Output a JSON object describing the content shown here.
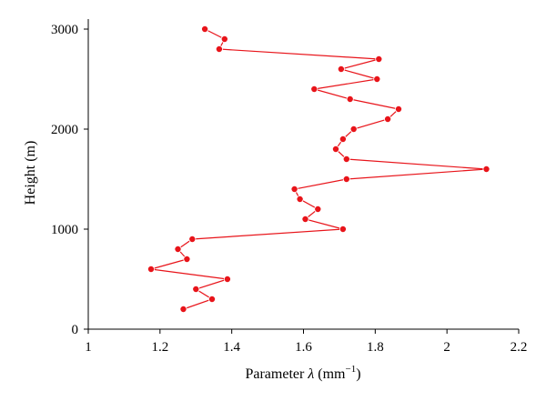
{
  "chart_data": {
    "type": "line",
    "xlabel_prefix": "Parameter ",
    "xlabel_symbol": "λ",
    "xlabel_unit": " (mm",
    "xlabel_exp": "−1",
    "xlabel_close": ")",
    "ylabel": "Height (m)",
    "xlim": [
      1.0,
      2.2
    ],
    "ylim": [
      0,
      3100
    ],
    "xticks": [
      1,
      1.2,
      1.4,
      1.6,
      1.8,
      2,
      2.2
    ],
    "xtick_labels": [
      "1",
      "1.2",
      "1.4",
      "1.6",
      "1.8",
      "2",
      "2.2"
    ],
    "yticks": [
      0,
      1000,
      2000,
      3000
    ],
    "ytick_labels": [
      "0",
      "1000",
      "2000",
      "3000"
    ],
    "grid": false,
    "legend": "none",
    "color": "#e8141a",
    "series": [
      {
        "points": [
          {
            "x": 1.265,
            "y": 200
          },
          {
            "x": 1.345,
            "y": 300
          },
          {
            "x": 1.3,
            "y": 400
          },
          {
            "x": 1.388,
            "y": 500
          },
          {
            "x": 1.175,
            "y": 600
          },
          {
            "x": 1.275,
            "y": 700
          },
          {
            "x": 1.25,
            "y": 800
          },
          {
            "x": 1.29,
            "y": 900
          },
          {
            "x": 1.71,
            "y": 1000
          },
          {
            "x": 1.605,
            "y": 1100
          },
          {
            "x": 1.64,
            "y": 1200
          },
          {
            "x": 1.59,
            "y": 1300
          },
          {
            "x": 1.575,
            "y": 1400
          },
          {
            "x": 1.72,
            "y": 1500
          },
          {
            "x": 2.11,
            "y": 1600
          },
          {
            "x": 1.72,
            "y": 1700
          },
          {
            "x": 1.69,
            "y": 1800
          },
          {
            "x": 1.71,
            "y": 1900
          },
          {
            "x": 1.74,
            "y": 2000
          },
          {
            "x": 1.835,
            "y": 2100
          },
          {
            "x": 1.865,
            "y": 2200
          },
          {
            "x": 1.73,
            "y": 2300
          },
          {
            "x": 1.63,
            "y": 2400
          },
          {
            "x": 1.805,
            "y": 2500
          },
          {
            "x": 1.705,
            "y": 2600
          },
          {
            "x": 1.81,
            "y": 2700
          },
          {
            "x": 1.365,
            "y": 2800
          },
          {
            "x": 1.38,
            "y": 2900
          },
          {
            "x": 1.325,
            "y": 3000
          }
        ]
      }
    ]
  }
}
